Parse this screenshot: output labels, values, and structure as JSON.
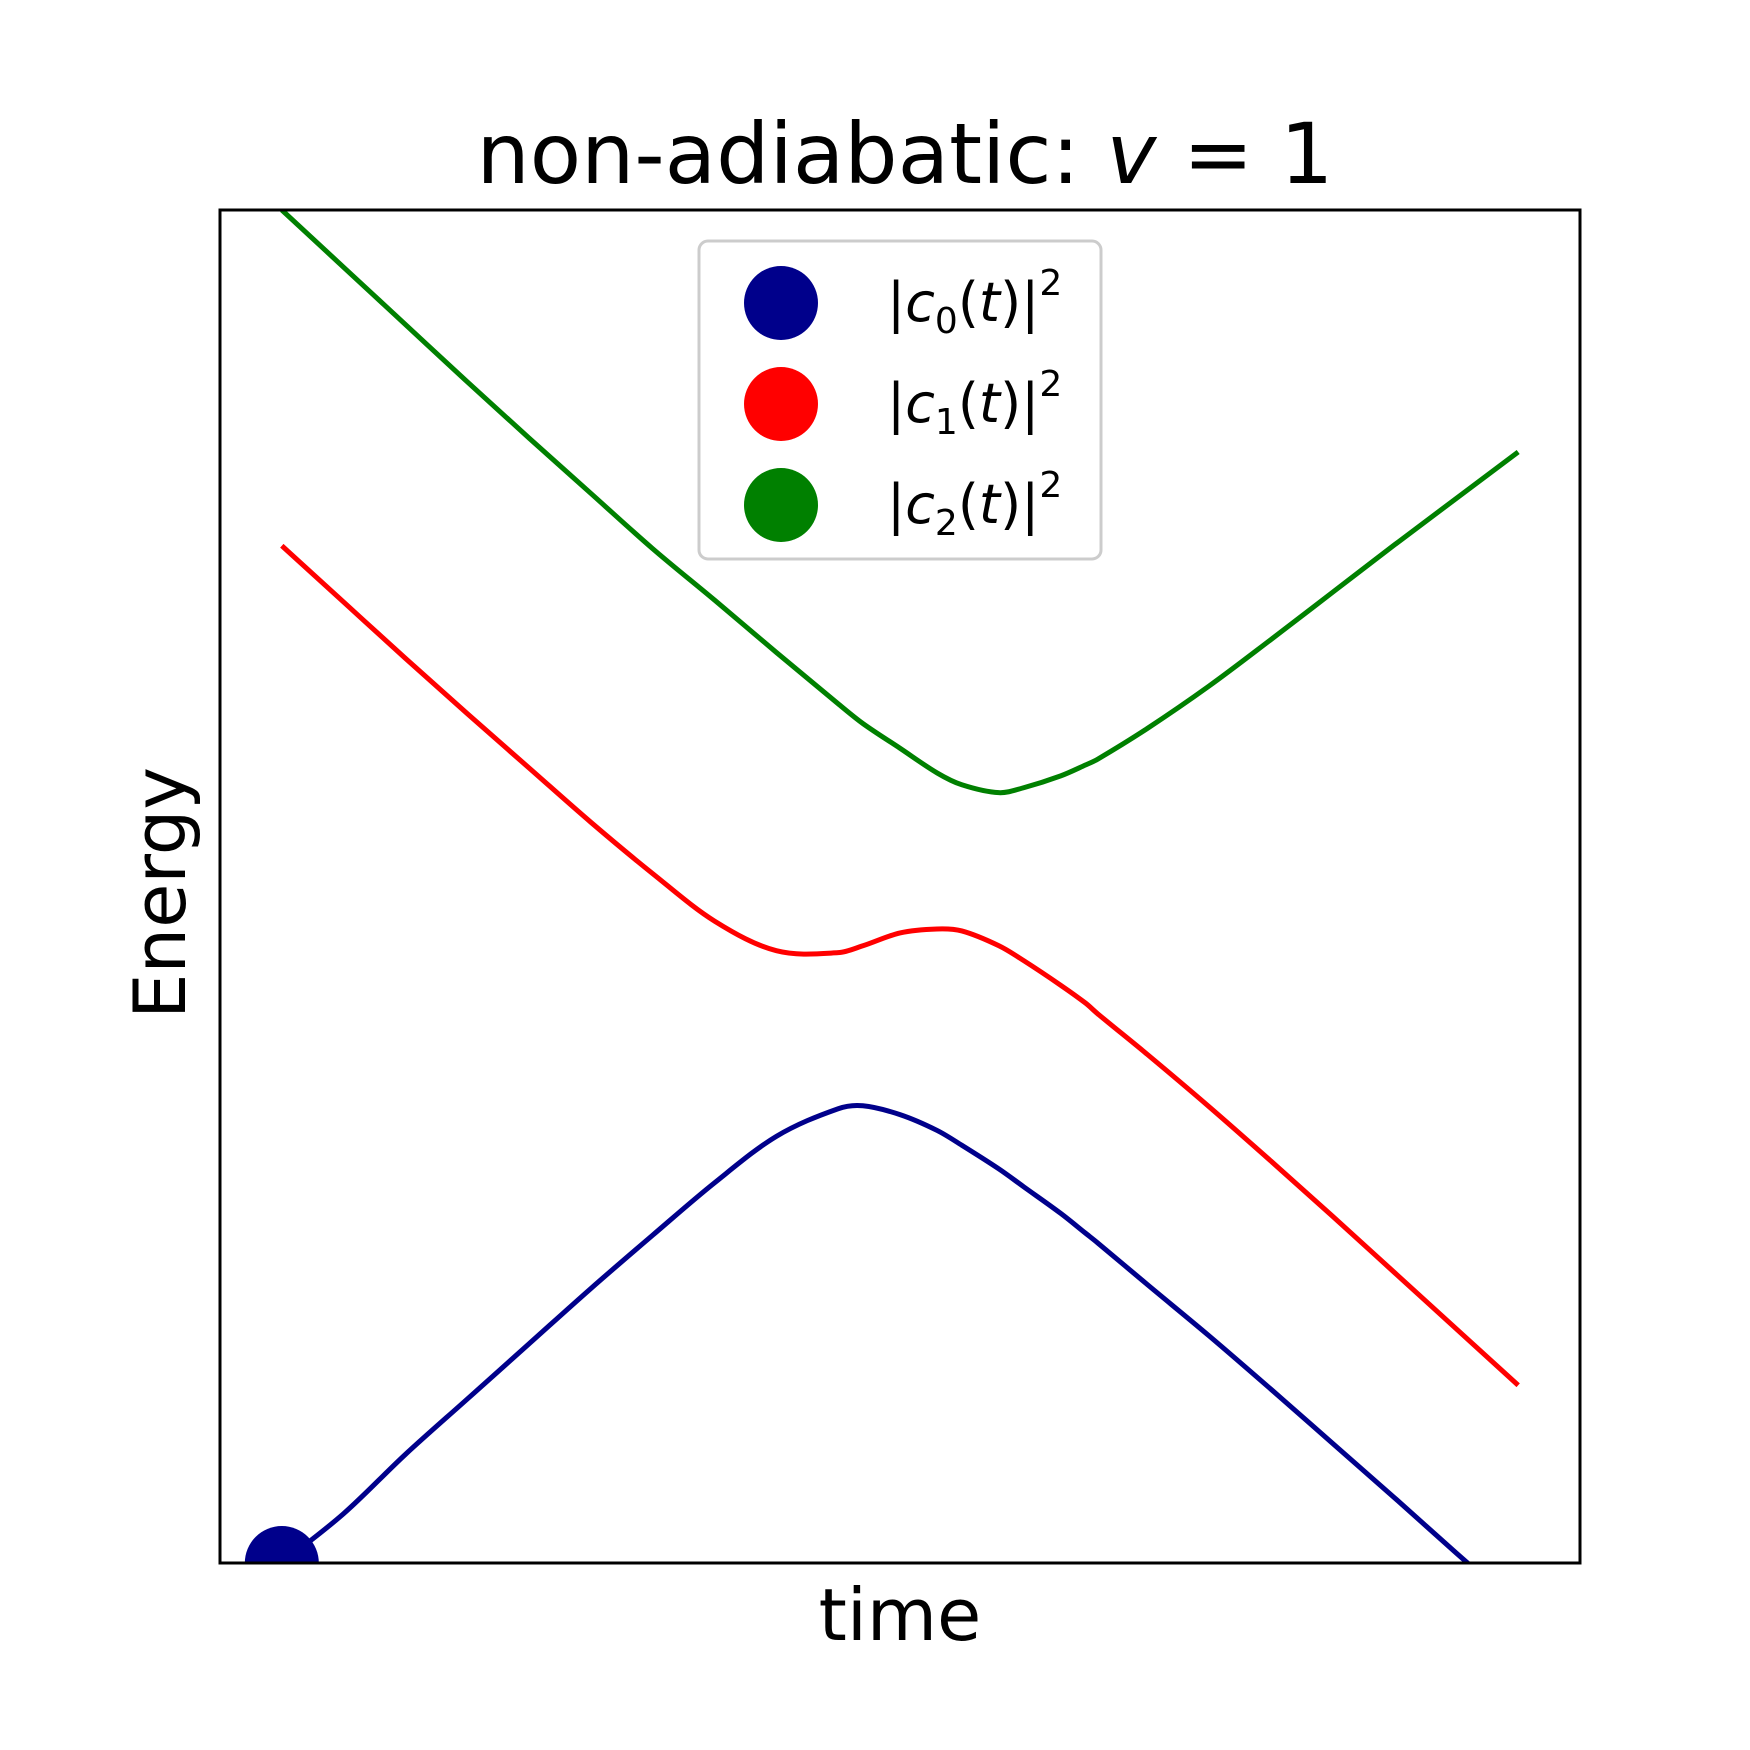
{
  "chart_data": {
    "type": "line",
    "title": {
      "prefix": "non-adiabatic: ",
      "var": "v",
      "equals": " = 1"
    },
    "xlabel": "time",
    "ylabel": "Energy",
    "xlim": [
      -5.5,
      5.5
    ],
    "ylim": [
      -7.1,
      6.6
    ],
    "grid": false,
    "ticks_visible": false,
    "legend": {
      "placement": "upper center",
      "entries": [
        {
          "bar1": "|",
          "c": "c",
          "sub": "0",
          "open": "(",
          "t": "t",
          "close": ")",
          "bar2": "|",
          "sup": "2",
          "color": "#00008b"
        },
        {
          "bar1": "|",
          "c": "c",
          "sub": "1",
          "open": "(",
          "t": "t",
          "close": ")",
          "bar2": "|",
          "sup": "2",
          "color": "#ff0000"
        },
        {
          "bar1": "|",
          "c": "c",
          "sub": "2",
          "open": "(",
          "t": "t",
          "close": ")",
          "bar2": "|",
          "sup": "2",
          "color": "#008000"
        }
      ]
    },
    "series_colors": [
      "#00008b",
      "#ff0000",
      "#008000"
    ],
    "x": [
      -5.0,
      -4.5,
      -4.0,
      -3.5,
      -3.0,
      -2.5,
      -2.0,
      -1.5,
      -1.0,
      -0.5,
      -0.3,
      0.0,
      0.3,
      0.5,
      0.8,
      1.0,
      1.3,
      1.5,
      1.6,
      2.0,
      2.5,
      3.0,
      3.5,
      4.0,
      4.5,
      5.0
    ],
    "series": [
      {
        "values": [
          -7.1,
          -6.6,
          -6.0,
          -5.44,
          -4.88,
          -4.32,
          -3.78,
          -3.25,
          -2.78,
          -2.5,
          -2.47,
          -2.56,
          -2.72,
          -2.87,
          -3.11,
          -3.29,
          -3.56,
          -3.76,
          -3.86,
          -4.28,
          -4.8,
          -5.34,
          -5.89,
          -6.44,
          -7.0,
          -7.55
        ]
      },
      {
        "values": [
          3.2,
          2.63,
          2.06,
          1.5,
          0.95,
          0.4,
          -0.12,
          -0.6,
          -0.9,
          -0.92,
          -0.85,
          -0.72,
          -0.68,
          -0.7,
          -0.85,
          -1.0,
          -1.25,
          -1.43,
          -1.54,
          -1.95,
          -2.48,
          -3.03,
          -3.59,
          -4.16,
          -4.73,
          -5.3
        ]
      },
      {
        "values": [
          6.6,
          6.02,
          5.44,
          4.86,
          4.29,
          3.73,
          3.17,
          2.65,
          2.12,
          1.6,
          1.4,
          1.15,
          0.9,
          0.78,
          0.7,
          0.75,
          0.87,
          0.98,
          1.04,
          1.35,
          1.78,
          2.25,
          2.73,
          3.21,
          3.68,
          4.15
        ]
      }
    ],
    "marker": {
      "x": -5.0,
      "y": -7.1,
      "color": "#00008b"
    }
  }
}
